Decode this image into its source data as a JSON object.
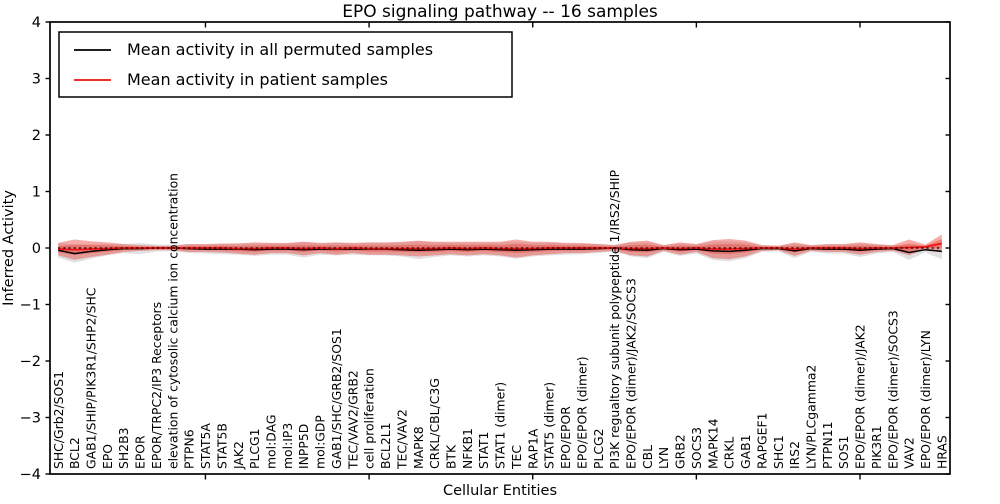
{
  "figure": {
    "title": "EPO signaling pathway -- 16 samples",
    "xlabel": "Cellular Entities",
    "ylabel": "Inferred Activity"
  },
  "legend": {
    "position": "upper left",
    "entries": [
      {
        "label": "Mean activity in all permuted samples",
        "color": "#000000"
      },
      {
        "label": "Mean activity in patient samples",
        "color": "#ee1111"
      }
    ]
  },
  "chart_data": {
    "type": "line",
    "title": "EPO signaling pathway -- 16 samples",
    "xlabel": "Cellular Entities",
    "ylabel": "Inferred Activity",
    "ylim": [
      -4,
      4
    ],
    "yticks": [
      4,
      3,
      2,
      1,
      0,
      -1,
      -2,
      -3,
      -4
    ],
    "x_axis_marks": [
      10,
      20,
      30,
      40,
      50
    ],
    "grid": false,
    "legend_position": "upper left",
    "zero_reference_line": 0,
    "categories": [
      "SHC/Grb2/SOS1",
      "BCL2",
      "GAB1/SHIP/PIK3R1/SHP2/SHC",
      "EPO",
      "SH2B3",
      "EPOR",
      "EPOR/TRPC2/IP3 Receptors",
      "elevation of cytosolic calcium ion concentration",
      "PTPN6",
      "STAT5A",
      "STAT5B",
      "JAK2",
      "PLCG1",
      "mol:DAG",
      "mol:IP3",
      "INPP5D",
      "mol:GDP",
      "GAB1/SHC/GRB2/SOS1",
      "TEC/VAV2/GRB2",
      "cell proliferation",
      "BCL2L1",
      "TEC/VAV2",
      "MAPK8",
      "CRKL/CBL/C3G",
      "BTK",
      "NFKB1",
      "STAT1",
      "STAT1 (dimer)",
      "TEC",
      "RAP1A",
      "STAT5 (dimer)",
      "EPO/EPOR",
      "EPO/EPOR (dimer)",
      "PLCG2",
      "PI3K regualtory subunit polypeptide 1/IRS2/SHIP",
      "EPO/EPOR (dimer)/JAK2/SOCS3",
      "CBL",
      "LYN",
      "GRB2",
      "SOCS3",
      "MAPK14",
      "CRKL",
      "GAB1",
      "RAPGEF1",
      "SHC1",
      "IRS2",
      "LYN/PLCgamma2",
      "PTPN11",
      "SOS1",
      "EPO/EPOR (dimer)/JAK2",
      "PIK3R1",
      "EPO/EPOR (dimer)/SOCS3",
      "VAV2",
      "EPO/EPOR (dimer)/LYN",
      "HRAS"
    ],
    "series": [
      {
        "name": "Mean activity in all permuted samples",
        "color": "#000000",
        "values": [
          -0.04,
          -0.1,
          -0.06,
          -0.03,
          -0.01,
          -0.01,
          0,
          0,
          -0.01,
          -0.02,
          -0.02,
          -0.02,
          -0.03,
          -0.02,
          -0.02,
          -0.03,
          -0.02,
          -0.02,
          -0.02,
          -0.02,
          -0.02,
          -0.03,
          -0.04,
          -0.03,
          -0.02,
          -0.03,
          -0.02,
          -0.03,
          -0.04,
          -0.03,
          -0.02,
          -0.02,
          -0.02,
          -0.01,
          0,
          -0.03,
          -0.04,
          -0.01,
          -0.03,
          -0.02,
          -0.05,
          -0.06,
          -0.04,
          -0.01,
          -0.01,
          -0.05,
          -0.01,
          -0.02,
          -0.02,
          -0.04,
          -0.02,
          -0.01,
          -0.08,
          -0.03,
          -0.06
        ]
      },
      {
        "name": "Mean activity in patient samples",
        "color": "#ee1111",
        "values": [
          -0.02,
          -0.03,
          -0.02,
          -0.01,
          0,
          0,
          0,
          0,
          0,
          0,
          0,
          -0.01,
          -0.01,
          0,
          0,
          -0.01,
          0,
          -0.01,
          0,
          -0.01,
          -0.01,
          -0.01,
          -0.01,
          -0.01,
          0,
          -0.01,
          0,
          -0.01,
          -0.01,
          -0.01,
          0,
          0,
          0,
          0,
          0,
          -0.01,
          -0.01,
          0,
          -0.01,
          0,
          -0.02,
          -0.02,
          -0.01,
          0,
          0,
          -0.02,
          0,
          0,
          0,
          -0.01,
          0,
          0,
          0.01,
          0.02,
          0.08
        ]
      }
    ],
    "bands": {
      "permuted_std": [
        0.13,
        0.16,
        0.13,
        0.1,
        0.08,
        0.1,
        0.06,
        0.06,
        0.08,
        0.08,
        0.09,
        0.1,
        0.11,
        0.1,
        0.1,
        0.14,
        0.1,
        0.11,
        0.1,
        0.11,
        0.11,
        0.12,
        0.16,
        0.13,
        0.11,
        0.12,
        0.11,
        0.12,
        0.15,
        0.12,
        0.11,
        0.1,
        0.09,
        0.08,
        0.06,
        0.12,
        0.14,
        0.06,
        0.11,
        0.08,
        0.16,
        0.18,
        0.14,
        0.06,
        0.05,
        0.13,
        0.06,
        0.08,
        0.08,
        0.12,
        0.08,
        0.06,
        0.13,
        0.05,
        0.14
      ],
      "patient_std": [
        0.11,
        0.18,
        0.14,
        0.11,
        0.07,
        0.05,
        0.04,
        0.04,
        0.07,
        0.07,
        0.08,
        0.09,
        0.11,
        0.09,
        0.09,
        0.12,
        0.09,
        0.11,
        0.09,
        0.11,
        0.11,
        0.12,
        0.14,
        0.12,
        0.11,
        0.12,
        0.11,
        0.12,
        0.16,
        0.12,
        0.11,
        0.09,
        0.09,
        0.07,
        0.05,
        0.12,
        0.14,
        0.05,
        0.11,
        0.07,
        0.16,
        0.18,
        0.14,
        0.05,
        0.04,
        0.12,
        0.05,
        0.07,
        0.07,
        0.11,
        0.07,
        0.05,
        0.14,
        0.04,
        0.16
      ]
    },
    "colors": {
      "permuted_band": "#9a9a9a",
      "patient_band": "#e8453c",
      "permuted_line": "#000000",
      "patient_line": "#ee1111",
      "frame": "#000000",
      "background": "#ffffff"
    }
  }
}
